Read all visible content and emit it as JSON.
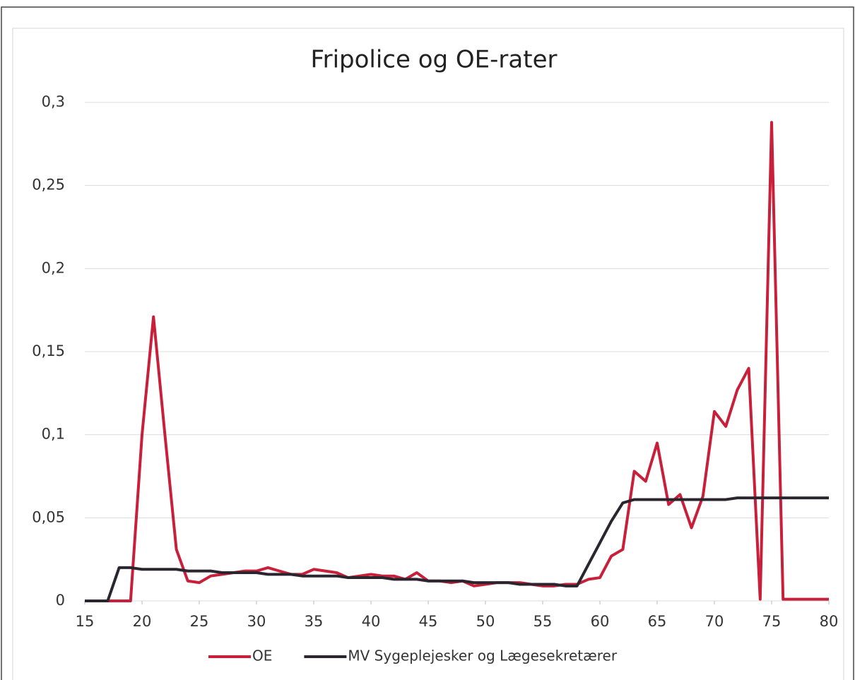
{
  "chart_data": {
    "type": "line",
    "title": "Fripolice og OE-rater",
    "x": [
      15,
      16,
      17,
      18,
      19,
      20,
      21,
      22,
      23,
      24,
      25,
      26,
      27,
      28,
      29,
      30,
      31,
      32,
      33,
      34,
      35,
      36,
      37,
      38,
      39,
      40,
      41,
      42,
      43,
      44,
      45,
      46,
      47,
      48,
      49,
      50,
      51,
      52,
      53,
      54,
      55,
      56,
      57,
      58,
      59,
      60,
      61,
      62,
      63,
      64,
      65,
      66,
      67,
      68,
      69,
      70,
      71,
      72,
      73,
      74,
      75,
      76,
      77,
      78,
      79,
      80
    ],
    "series": [
      {
        "name": "OE",
        "color": "#c8203a",
        "values": [
          0,
          0,
          0,
          0,
          0,
          0.1,
          0.171,
          0.1,
          0.031,
          0.012,
          0.011,
          0.015,
          0.016,
          0.017,
          0.018,
          0.018,
          0.02,
          0.018,
          0.016,
          0.016,
          0.019,
          0.018,
          0.017,
          0.014,
          0.015,
          0.016,
          0.015,
          0.015,
          0.013,
          0.017,
          0.012,
          0.012,
          0.011,
          0.012,
          0.009,
          0.01,
          0.011,
          0.011,
          0.011,
          0.01,
          0.009,
          0.009,
          0.01,
          0.01,
          0.013,
          0.014,
          0.027,
          0.031,
          0.078,
          0.072,
          0.095,
          0.058,
          0.064,
          0.044,
          0.063,
          0.114,
          0.105,
          0.127,
          0.14,
          0.001,
          0.288,
          0.001,
          0.001,
          0.001,
          0.001,
          0.001
        ]
      },
      {
        "name": "MV Sygeplejesker og Lægesekretærer",
        "color": "#2b2530",
        "values": [
          0,
          0,
          0,
          0.02,
          0.02,
          0.019,
          0.019,
          0.019,
          0.019,
          0.018,
          0.018,
          0.018,
          0.017,
          0.017,
          0.017,
          0.017,
          0.016,
          0.016,
          0.016,
          0.015,
          0.015,
          0.015,
          0.015,
          0.014,
          0.014,
          0.014,
          0.014,
          0.013,
          0.013,
          0.013,
          0.012,
          0.012,
          0.012,
          0.012,
          0.011,
          0.011,
          0.011,
          0.011,
          0.01,
          0.01,
          0.01,
          0.01,
          0.009,
          0.009,
          0.022,
          0.035,
          0.048,
          0.059,
          0.061,
          0.061,
          0.061,
          0.061,
          0.061,
          0.061,
          0.061,
          0.061,
          0.061,
          0.062,
          0.062,
          0.062,
          0.062,
          0.062,
          0.062,
          0.062,
          0.062,
          0.062
        ]
      }
    ],
    "xlim": [
      15,
      80
    ],
    "xticks": [
      15,
      20,
      25,
      30,
      35,
      40,
      45,
      50,
      55,
      60,
      65,
      70,
      75,
      80
    ],
    "ylim": [
      0,
      0.3
    ],
    "yticks": [
      0,
      {
        "value": 0.05,
        "label": "0,05"
      },
      {
        "value": 0.1,
        "label": "0,1"
      },
      {
        "value": 0.15,
        "label": "0,15"
      },
      {
        "value": 0.2,
        "label": "0,2"
      },
      {
        "value": 0.25,
        "label": "0,25"
      },
      {
        "value": 0.3,
        "label": "0,3"
      }
    ],
    "grid": true,
    "legend": "bottom"
  }
}
